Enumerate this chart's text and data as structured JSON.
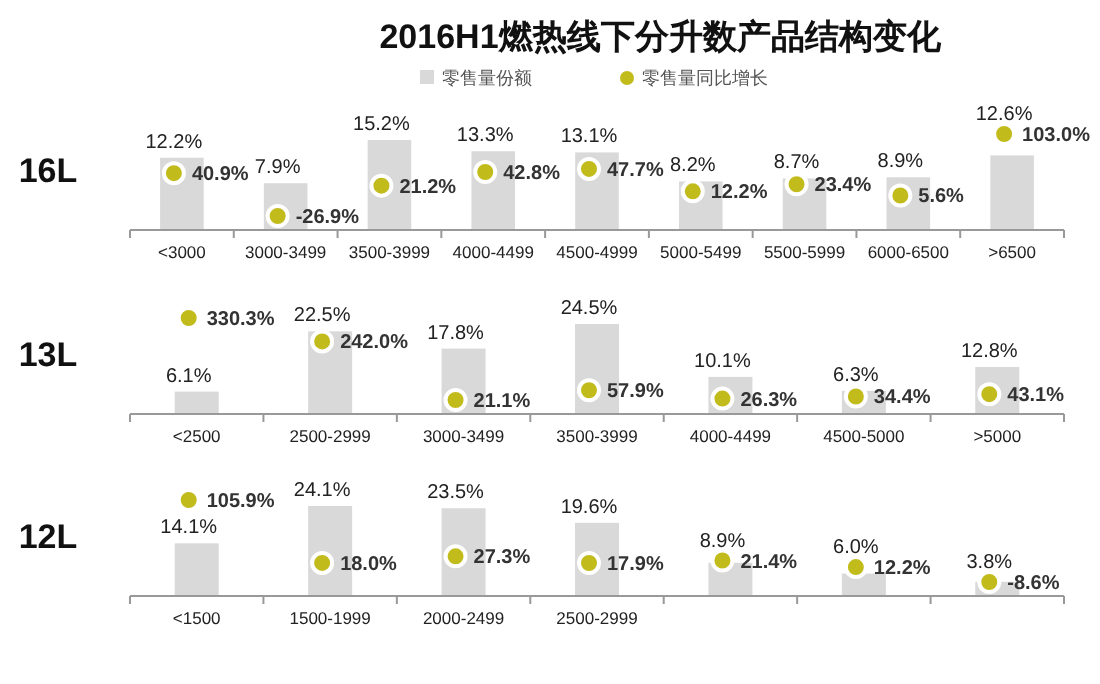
{
  "chart_data": [
    {
      "type": "bar",
      "title": "2016H1燃热线下分升数产品结构变化",
      "ylabel": "16L",
      "legend": "top",
      "categories": [
        "<3000",
        "3000-3499",
        "3500-3999",
        "4000-4499",
        "4500-4999",
        "5000-5499",
        "5500-5999",
        "6000-6500",
        ">6500"
      ],
      "series": [
        {
          "name": "零售量份额",
          "color": "#d9d9d9",
          "values": [
            12.2,
            7.9,
            15.2,
            13.3,
            13.1,
            8.2,
            8.7,
            8.9,
            12.6
          ],
          "value_labels": [
            "12.2%",
            "7.9%",
            "15.2%",
            "13.3%",
            "13.1%",
            "8.2%",
            "8.7%",
            "8.9%",
            "12.6%"
          ]
        },
        {
          "name": "零售量同比增长",
          "type": "scatter",
          "axis": "y2",
          "color": "#c2bb1c",
          "values": [
            40.9,
            -26.9,
            21.2,
            42.8,
            47.7,
            12.2,
            23.4,
            5.6,
            103.0
          ],
          "value_labels": [
            "40.9%",
            "-26.9%",
            "21.2%",
            "42.8%",
            "47.7%",
            "12.2%",
            "23.4%",
            "5.6%",
            "103.0%"
          ]
        }
      ]
    },
    {
      "type": "bar",
      "ylabel": "13L",
      "categories": [
        "<2500",
        "2500-2999",
        "3000-3499",
        "3500-3999",
        "4000-4499",
        "4500-5000",
        ">5000"
      ],
      "series": [
        {
          "color": "#d9d9d9",
          "values": [
            6.1,
            22.5,
            17.8,
            24.5,
            10.1,
            6.3,
            12.8
          ],
          "value_labels": [
            "6.1%",
            "22.5%",
            "17.8%",
            "24.5%",
            "10.1%",
            "6.3%",
            "12.8%"
          ]
        },
        {
          "type": "scatter",
          "axis": "y2",
          "color": "#c2bb1c",
          "values": [
            330.3,
            242.0,
            21.1,
            57.9,
            26.3,
            34.4,
            43.1
          ],
          "value_labels": [
            "330.3%",
            "242.0%",
            "21.1%",
            "57.9%",
            "26.3%",
            "34.4%",
            "43.1%"
          ]
        }
      ]
    },
    {
      "type": "bar",
      "ylabel": "12L",
      "categories": [
        "<1500",
        "1500-1999",
        "2000-2499",
        "2500-2999",
        null,
        null,
        null
      ],
      "series": [
        {
          "color": "#d9d9d9",
          "values": [
            14.1,
            24.1,
            23.5,
            19.6,
            8.9,
            6.0,
            3.8
          ],
          "value_labels": [
            "14.1%",
            "24.1%",
            "23.5%",
            "19.6%",
            "8.9%",
            "6.0%",
            "3.8%"
          ]
        },
        {
          "type": "scatter",
          "axis": "y2",
          "color": "#c2bb1c",
          "values": [
            105.9,
            18.0,
            27.3,
            17.9,
            21.4,
            12.2,
            -8.6
          ],
          "value_labels": [
            "105.9%",
            "18.0%",
            "27.3%",
            "17.9%",
            "21.4%",
            "12.2%",
            "-8.6%"
          ]
        }
      ]
    }
  ]
}
